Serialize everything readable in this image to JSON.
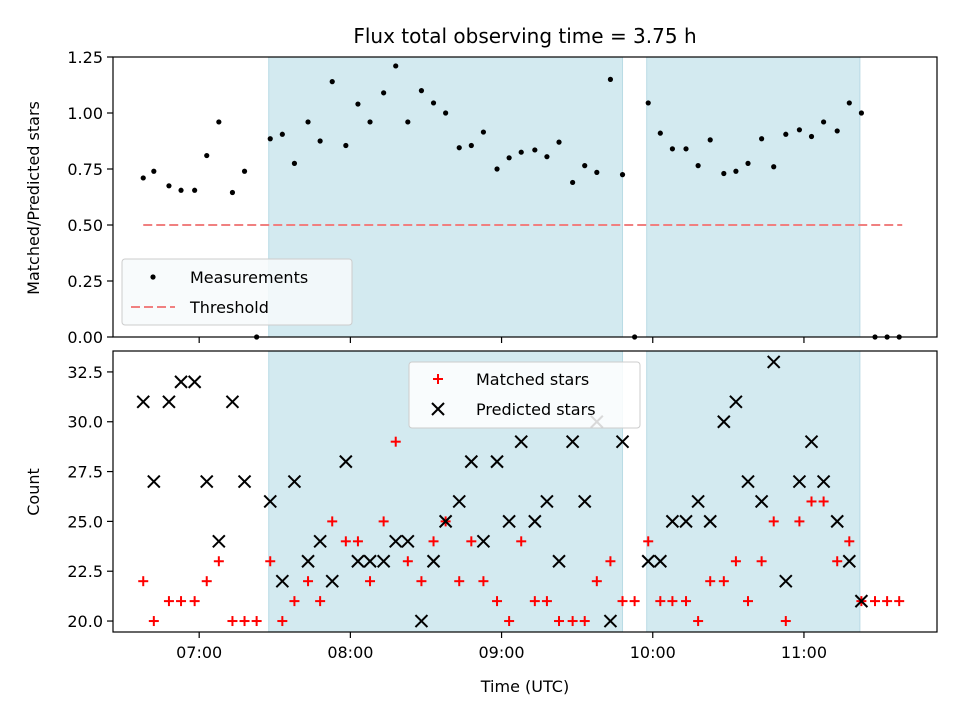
{
  "chart_data": {
    "type": "scatter",
    "title": "Flux total observing time = 3.75 h",
    "xlabel": "Time (UTC)",
    "x_ticks": [
      "07:00",
      "08:00",
      "09:00",
      "10:00",
      "11:00"
    ],
    "x_tick_hours": [
      7,
      8,
      9,
      10,
      11
    ],
    "xlim": [
      6.43,
      11.88
    ],
    "shaded_intervals": [
      [
        7.46,
        9.8
      ],
      [
        9.96,
        11.37
      ]
    ],
    "shade_color": "#d3eaf0",
    "top_panel": {
      "ylabel": "Matched/Predicted stars",
      "ylim": [
        0,
        1.25
      ],
      "yticks": [
        "0.00",
        "0.25",
        "0.50",
        "0.75",
        "1.00",
        "1.25"
      ],
      "ytick_values": [
        0,
        0.25,
        0.5,
        0.75,
        1.0,
        1.25
      ],
      "threshold": {
        "name": "Threshold",
        "value": 0.5,
        "x_range": [
          6.63,
          11.65
        ],
        "color": "#f08080"
      },
      "measurements": {
        "name": "Measurements",
        "color": "#000000",
        "points": [
          [
            6.63,
            0.71
          ],
          [
            6.7,
            0.74
          ],
          [
            6.8,
            0.675
          ],
          [
            6.88,
            0.655
          ],
          [
            6.97,
            0.655
          ],
          [
            7.05,
            0.81
          ],
          [
            7.13,
            0.96
          ],
          [
            7.22,
            0.645
          ],
          [
            7.3,
            0.74
          ],
          [
            7.38,
            0.0
          ],
          [
            7.47,
            0.885
          ],
          [
            7.55,
            0.905
          ],
          [
            7.63,
            0.775
          ],
          [
            7.72,
            0.96
          ],
          [
            7.8,
            0.875
          ],
          [
            7.88,
            1.14
          ],
          [
            7.97,
            0.855
          ],
          [
            8.05,
            1.04
          ],
          [
            8.13,
            0.96
          ],
          [
            8.22,
            1.09
          ],
          [
            8.3,
            1.21
          ],
          [
            8.38,
            0.96
          ],
          [
            8.47,
            1.1
          ],
          [
            8.55,
            1.045
          ],
          [
            8.63,
            1.0
          ],
          [
            8.72,
            0.845
          ],
          [
            8.8,
            0.855
          ],
          [
            8.88,
            0.915
          ],
          [
            8.97,
            0.75
          ],
          [
            9.05,
            0.8
          ],
          [
            9.13,
            0.825
          ],
          [
            9.22,
            0.835
          ],
          [
            9.3,
            0.805
          ],
          [
            9.38,
            0.87
          ],
          [
            9.47,
            0.69
          ],
          [
            9.55,
            0.765
          ],
          [
            9.63,
            0.735
          ],
          [
            9.72,
            1.15
          ],
          [
            9.8,
            0.725
          ],
          [
            9.88,
            0.0
          ],
          [
            9.97,
            1.045
          ],
          [
            10.05,
            0.91
          ],
          [
            10.13,
            0.84
          ],
          [
            10.22,
            0.84
          ],
          [
            10.3,
            0.765
          ],
          [
            10.38,
            0.88
          ],
          [
            10.47,
            0.73
          ],
          [
            10.55,
            0.74
          ],
          [
            10.63,
            0.775
          ],
          [
            10.72,
            0.885
          ],
          [
            10.8,
            0.76
          ],
          [
            10.88,
            0.905
          ],
          [
            10.97,
            0.925
          ],
          [
            11.05,
            0.895
          ],
          [
            11.13,
            0.96
          ],
          [
            11.22,
            0.92
          ],
          [
            11.3,
            1.045
          ],
          [
            11.38,
            1.0
          ],
          [
            11.47,
            0.0
          ],
          [
            11.55,
            0.0
          ],
          [
            11.63,
            0.0
          ]
        ]
      },
      "legend": {
        "placement": "lower left",
        "entries": [
          "Measurements",
          "Threshold"
        ]
      }
    },
    "bottom_panel": {
      "ylabel": "Count",
      "ylim": [
        19.45,
        33.55
      ],
      "yticks": [
        "20.0",
        "22.5",
        "25.0",
        "27.5",
        "30.0",
        "32.5"
      ],
      "ytick_values": [
        20,
        22.5,
        25,
        27.5,
        30,
        32.5
      ],
      "series": [
        {
          "name": "Matched stars",
          "marker": "plus",
          "color": "#ff0000",
          "points": [
            [
              6.63,
              22
            ],
            [
              6.7,
              20
            ],
            [
              6.8,
              21
            ],
            [
              6.88,
              21
            ],
            [
              6.97,
              21
            ],
            [
              7.05,
              22
            ],
            [
              7.13,
              23
            ],
            [
              7.22,
              20
            ],
            [
              7.3,
              20
            ],
            [
              7.38,
              20
            ],
            [
              7.47,
              23
            ],
            [
              7.55,
              20
            ],
            [
              7.63,
              21
            ],
            [
              7.72,
              22
            ],
            [
              7.8,
              21
            ],
            [
              7.88,
              25
            ],
            [
              7.97,
              24
            ],
            [
              8.05,
              24
            ],
            [
              8.13,
              22
            ],
            [
              8.22,
              25
            ],
            [
              8.3,
              29
            ],
            [
              8.38,
              23
            ],
            [
              8.47,
              22
            ],
            [
              8.55,
              24
            ],
            [
              8.63,
              25
            ],
            [
              8.72,
              22
            ],
            [
              8.8,
              24
            ],
            [
              8.88,
              22
            ],
            [
              8.97,
              21
            ],
            [
              9.05,
              20
            ],
            [
              9.13,
              24
            ],
            [
              9.22,
              21
            ],
            [
              9.3,
              21
            ],
            [
              9.38,
              20
            ],
            [
              9.47,
              20
            ],
            [
              9.55,
              20
            ],
            [
              9.63,
              22
            ],
            [
              9.72,
              23
            ],
            [
              9.8,
              21
            ],
            [
              9.88,
              21
            ],
            [
              9.97,
              24
            ],
            [
              10.05,
              21
            ],
            [
              10.13,
              21
            ],
            [
              10.22,
              21
            ],
            [
              10.3,
              20
            ],
            [
              10.38,
              22
            ],
            [
              10.47,
              22
            ],
            [
              10.55,
              23
            ],
            [
              10.63,
              21
            ],
            [
              10.72,
              23
            ],
            [
              10.8,
              25
            ],
            [
              10.88,
              20
            ],
            [
              10.97,
              25
            ],
            [
              11.05,
              26
            ],
            [
              11.13,
              26
            ],
            [
              11.22,
              23
            ],
            [
              11.3,
              24
            ],
            [
              11.38,
              21
            ],
            [
              11.47,
              21
            ],
            [
              11.55,
              21
            ],
            [
              11.63,
              21
            ]
          ]
        },
        {
          "name": "Predicted stars",
          "marker": "x",
          "color": "#000000",
          "points": [
            [
              6.63,
              31
            ],
            [
              6.7,
              27
            ],
            [
              6.8,
              31
            ],
            [
              6.88,
              32
            ],
            [
              6.97,
              32
            ],
            [
              7.05,
              27
            ],
            [
              7.13,
              24
            ],
            [
              7.22,
              31
            ],
            [
              7.3,
              27
            ],
            [
              7.47,
              26
            ],
            [
              7.55,
              22
            ],
            [
              7.63,
              27
            ],
            [
              7.72,
              23
            ],
            [
              7.8,
              24
            ],
            [
              7.88,
              22
            ],
            [
              7.97,
              28
            ],
            [
              8.05,
              23
            ],
            [
              8.13,
              23
            ],
            [
              8.22,
              23
            ],
            [
              8.3,
              24
            ],
            [
              8.38,
              24
            ],
            [
              8.47,
              20
            ],
            [
              8.55,
              23
            ],
            [
              8.63,
              25
            ],
            [
              8.72,
              26
            ],
            [
              8.8,
              28
            ],
            [
              8.88,
              24
            ],
            [
              8.97,
              28
            ],
            [
              9.05,
              25
            ],
            [
              9.13,
              29
            ],
            [
              9.22,
              25
            ],
            [
              9.3,
              26
            ],
            [
              9.38,
              23
            ],
            [
              9.47,
              29
            ],
            [
              9.55,
              26
            ],
            [
              9.63,
              30
            ],
            [
              9.72,
              20
            ],
            [
              9.8,
              29
            ],
            [
              9.97,
              23
            ],
            [
              10.05,
              23
            ],
            [
              10.13,
              25
            ],
            [
              10.22,
              25
            ],
            [
              10.3,
              26
            ],
            [
              10.38,
              25
            ],
            [
              10.47,
              30
            ],
            [
              10.55,
              31
            ],
            [
              10.63,
              27
            ],
            [
              10.72,
              26
            ],
            [
              10.8,
              33
            ],
            [
              10.88,
              22
            ],
            [
              10.97,
              27
            ],
            [
              11.05,
              29
            ],
            [
              11.13,
              27
            ],
            [
              11.22,
              25
            ],
            [
              11.3,
              23
            ],
            [
              11.38,
              21
            ]
          ]
        }
      ],
      "legend": {
        "placement": "upper center",
        "entries": [
          "Matched stars",
          "Predicted stars"
        ]
      }
    }
  }
}
